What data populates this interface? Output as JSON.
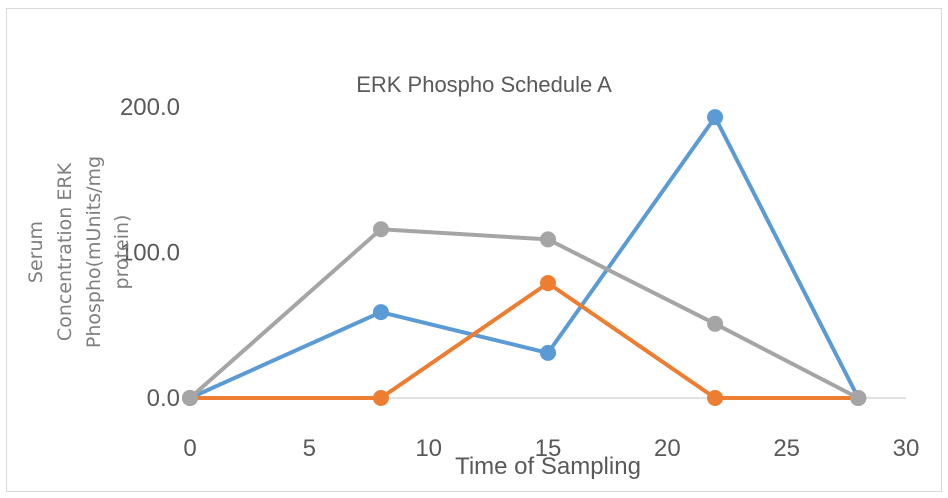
{
  "chart_data": {
    "type": "line",
    "title": "ERK Phospho Schedule A",
    "xlabel": "Time of Sampling",
    "ylabel_lines": [
      "Serum",
      "Concentration ERK",
      "Phospho(mUnits/mg",
      "protein)"
    ],
    "xlim": [
      0,
      30
    ],
    "ylim": [
      0,
      200
    ],
    "x_ticks": [
      "0",
      "5",
      "10",
      "15",
      "20",
      "25",
      "30"
    ],
    "y_ticks": [
      "0.0",
      "100.0",
      "200.0"
    ],
    "grid": false,
    "series": [
      {
        "color": "#5b9bd5",
        "x": [
          0,
          8,
          15,
          22,
          28
        ],
        "y": [
          0,
          59,
          31,
          193,
          0
        ]
      },
      {
        "color": "#ed7d31",
        "x": [
          0,
          8,
          15,
          22,
          28
        ],
        "y": [
          0,
          0,
          79,
          0,
          0
        ]
      },
      {
        "color": "#a5a5a5",
        "x": [
          0,
          8,
          15,
          22,
          28
        ],
        "y": [
          0,
          116,
          109,
          51,
          0
        ]
      }
    ]
  }
}
